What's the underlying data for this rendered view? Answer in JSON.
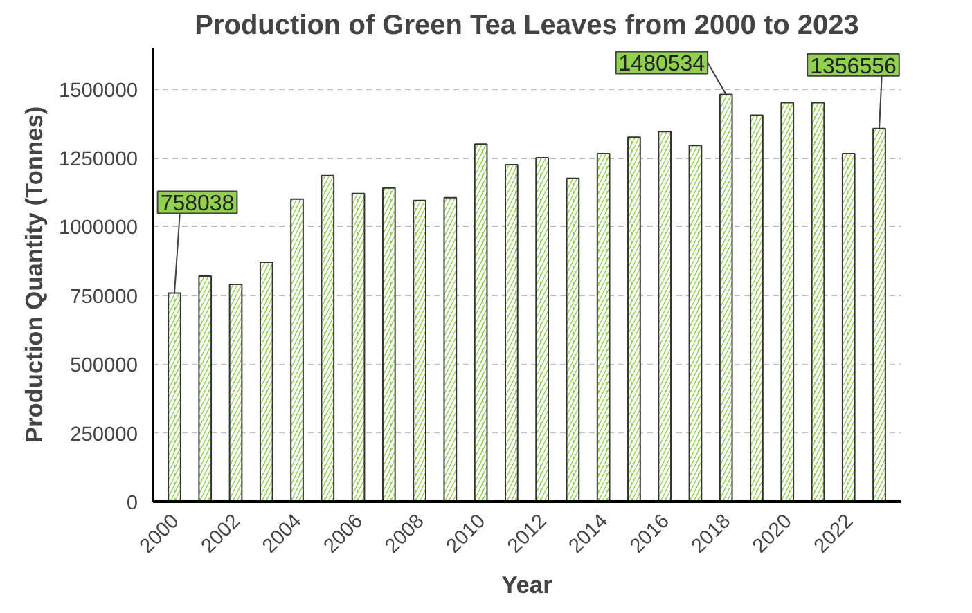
{
  "chart_data": {
    "type": "bar",
    "title": "Production of Green Tea Leaves from 2000 to 2023",
    "xlabel": "Year",
    "ylabel": "Production Quantity (Tonnes)",
    "categories": [
      "2000",
      null,
      "2002",
      null,
      "2004",
      null,
      "2006",
      null,
      "2008",
      null,
      "2010",
      null,
      "2012",
      null,
      "2014",
      null,
      "2016",
      null,
      "2018",
      null,
      "2020",
      null,
      "2022",
      null
    ],
    "values": [
      758038,
      820000,
      790000,
      870000,
      1100000,
      1185000,
      1120000,
      1140000,
      1095000,
      1105000,
      1300000,
      1225000,
      1250000,
      1175000,
      1265000,
      1325000,
      1345000,
      1295000,
      1480534,
      1405000,
      1450000,
      1450000,
      1265000,
      1356556
    ],
    "value_labels": [
      "758038",
      null,
      null,
      null,
      null,
      null,
      null,
      null,
      null,
      null,
      null,
      null,
      null,
      null,
      null,
      null,
      null,
      null,
      "1480534",
      null,
      null,
      null,
      null,
      "1356556"
    ],
    "color": "#92d050",
    "ylim": [
      0,
      1650000
    ],
    "yticks": [
      0,
      250000,
      500000,
      750000,
      1000000,
      1250000,
      1500000
    ],
    "grid": "y"
  }
}
